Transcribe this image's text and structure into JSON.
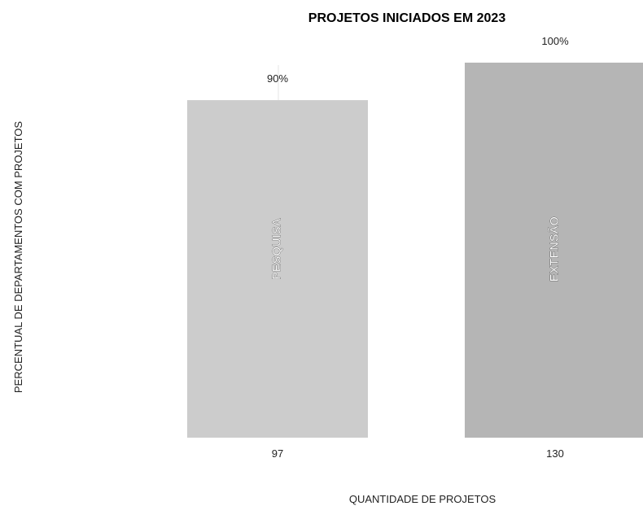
{
  "chart_data": {
    "type": "bar",
    "title": "PROJETOS INICIADOS EM 2023",
    "xlabel": "QUANTIDADE DE PROJETOS",
    "ylabel": "PERCENTUAL DE DEPARTAMENTOS COM PROJETOS",
    "ylim": [
      0,
      100
    ],
    "grid": false,
    "bars": [
      {
        "name": "PESQUISA",
        "category": "97",
        "value": 90,
        "value_label": "90%",
        "color": "#cccccc"
      },
      {
        "name": "EXTENSÃO",
        "category": "130",
        "value": 100,
        "value_label": "100%",
        "color": "#b5b5b5"
      }
    ]
  }
}
